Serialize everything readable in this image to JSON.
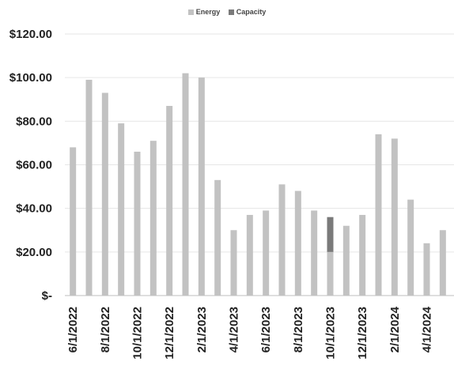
{
  "chart_data": {
    "type": "bar",
    "title": "",
    "xlabel": "",
    "ylabel": "",
    "ylim": [
      0,
      120
    ],
    "y_ticks": [
      "$-",
      "$20.00",
      "$40.00",
      "$60.00",
      "$80.00",
      "$100.00",
      "$120.00"
    ],
    "y_tick_values": [
      0,
      20,
      40,
      60,
      80,
      100,
      120
    ],
    "grid": true,
    "legend_position": "top-center",
    "categories": [
      "6/1/2022",
      "7/1/2022",
      "8/1/2022",
      "9/1/2022",
      "10/1/2022",
      "11/1/2022",
      "12/1/2022",
      "1/1/2023",
      "2/1/2023",
      "3/1/2023",
      "4/1/2023",
      "5/1/2023",
      "6/1/2023",
      "7/1/2023",
      "8/1/2023",
      "9/1/2023",
      "10/1/2023",
      "11/1/2023",
      "12/1/2023",
      "1/1/2024",
      "2/1/2024",
      "3/1/2024",
      "4/1/2024",
      "5/1/2024"
    ],
    "x_tick_labels": [
      "6/1/2022",
      "",
      "8/1/2022",
      "",
      "10/1/2022",
      "",
      "12/1/2022",
      "",
      "2/1/2023",
      "",
      "4/1/2023",
      "",
      "6/1/2023",
      "",
      "8/1/2023",
      "",
      "10/1/2023",
      "",
      "12/1/2023",
      "",
      "2/1/2024",
      "",
      "4/1/2024",
      ""
    ],
    "series": [
      {
        "name": "Energy",
        "color": "#c2c2c2",
        "values": [
          68,
          99,
          93,
          79,
          66,
          71,
          87,
          102,
          100,
          53,
          30,
          37,
          39,
          51,
          48,
          39,
          20,
          32,
          37,
          74,
          72,
          44,
          24,
          30
        ]
      },
      {
        "name": "Capacity",
        "color": "#7a7a7a",
        "values": [
          0,
          0,
          0,
          0,
          0,
          0,
          0,
          0,
          0,
          0,
          0,
          0,
          0,
          0,
          0,
          0,
          16,
          0,
          0,
          0,
          0,
          0,
          0,
          0
        ]
      }
    ]
  }
}
